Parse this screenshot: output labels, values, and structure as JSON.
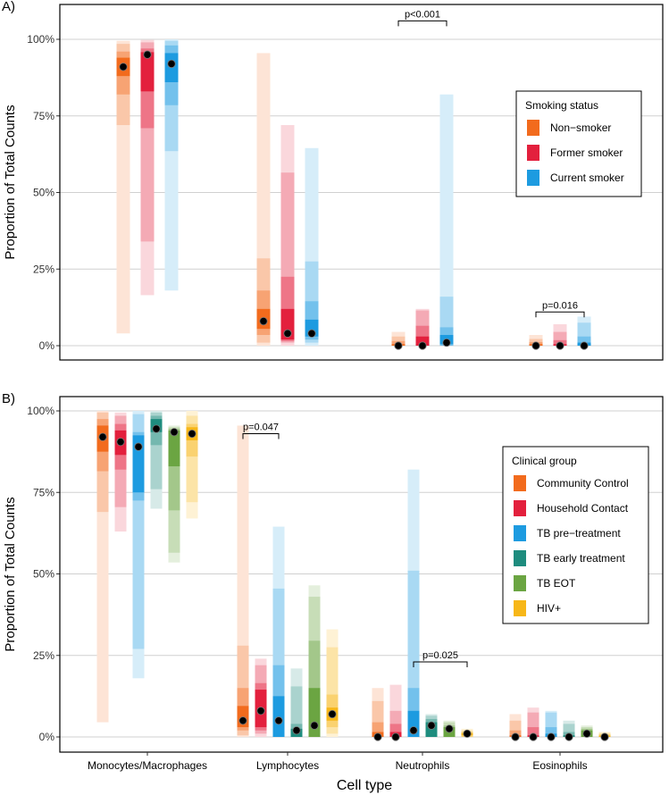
{
  "figure": {
    "xlabel": "Cell type"
  },
  "chart_data": [
    {
      "type": "bar",
      "subtype": "stacked-interval-ranges",
      "panel_label": "A)",
      "ylabel": "Proportion of Total Counts",
      "xlabel": "",
      "ylim": [
        0,
        1
      ],
      "yticks": [
        "0%",
        "25%",
        "50%",
        "75%",
        "100%"
      ],
      "grid": true,
      "legend": {
        "title": "Smoking status",
        "position": "right"
      },
      "categories": [
        "Monocytes/Macrophages",
        "Lymphocytes",
        "Neutrophils",
        "Eosinophils"
      ],
      "series": [
        {
          "name": "Non−smoker",
          "color": "#F26B1D",
          "values": [
            {
              "median": 0.91,
              "bands": [
                [
                  0.04,
                  0.995
                ],
                [
                  0.72,
                  0.985
                ],
                [
                  0.82,
                  0.96
                ],
                [
                  0.88,
                  0.94
                ]
              ]
            },
            {
              "median": 0.08,
              "bands": [
                [
                  0.0,
                  0.955
                ],
                [
                  0.01,
                  0.285
                ],
                [
                  0.035,
                  0.18
                ],
                [
                  0.055,
                  0.12
                ]
              ]
            },
            {
              "median": 0.0,
              "bands": [
                [
                  0.0,
                  0.045
                ],
                [
                  0.0,
                  0.03
                ],
                [
                  0.0,
                  0.015
                ],
                [
                  0.0,
                  0.005
                ]
              ]
            },
            {
              "median": 0.0,
              "bands": [
                [
                  0.0,
                  0.035
                ],
                [
                  0.0,
                  0.022
                ],
                [
                  0.0,
                  0.012
                ],
                [
                  0.0,
                  0.005
                ]
              ]
            }
          ]
        },
        {
          "name": "Former smoker",
          "color": "#E3203D",
          "values": [
            {
              "median": 0.95,
              "bands": [
                [
                  0.165,
                  0.998
                ],
                [
                  0.34,
                  0.99
                ],
                [
                  0.71,
                  0.97
                ],
                [
                  0.83,
                  0.958
                ]
              ]
            },
            {
              "median": 0.04,
              "bands": [
                [
                  0.0,
                  0.72
                ],
                [
                  0.01,
                  0.565
                ],
                [
                  0.015,
                  0.225
                ],
                [
                  0.02,
                  0.12
                ]
              ]
            },
            {
              "median": 0.0,
              "bands": [
                [
                  0.0,
                  0.12
                ],
                [
                  0.0,
                  0.115
                ],
                [
                  0.0,
                  0.065
                ],
                [
                  0.0,
                  0.03
                ]
              ]
            },
            {
              "median": 0.0,
              "bands": [
                [
                  0.0,
                  0.07
                ],
                [
                  0.0,
                  0.045
                ],
                [
                  0.0,
                  0.018
                ],
                [
                  0.0,
                  0.005
                ]
              ]
            }
          ]
        },
        {
          "name": "Current smoker",
          "color": "#1D9BE0",
          "values": [
            {
              "median": 0.92,
              "bands": [
                [
                  0.18,
                  1.0
                ],
                [
                  0.635,
                  0.995
                ],
                [
                  0.785,
                  0.98
                ],
                [
                  0.86,
                  0.955
                ]
              ]
            },
            {
              "median": 0.04,
              "bands": [
                [
                  0.0,
                  0.645
                ],
                [
                  0.01,
                  0.275
                ],
                [
                  0.02,
                  0.145
                ],
                [
                  0.03,
                  0.085
                ]
              ]
            },
            {
              "median": 0.01,
              "bands": [
                [
                  0.0,
                  0.82
                ],
                [
                  0.0,
                  0.16
                ],
                [
                  0.0,
                  0.06
                ],
                [
                  0.005,
                  0.035
                ]
              ]
            },
            {
              "median": 0.0,
              "bands": [
                [
                  0.0,
                  0.095
                ],
                [
                  0.0,
                  0.075
                ],
                [
                  0.0,
                  0.03
                ],
                [
                  0.0,
                  0.01
                ]
              ]
            }
          ]
        }
      ],
      "annotations": [
        {
          "text": "p<0.001",
          "category": 2,
          "from_series": 0,
          "to_series": 2,
          "y": 1.06
        },
        {
          "text": "p=0.016",
          "category": 3,
          "from_series": 0,
          "to_series": 2,
          "y": 0.11
        }
      ]
    },
    {
      "type": "bar",
      "subtype": "stacked-interval-ranges",
      "panel_label": "B)",
      "ylabel": "Proportion of Total Counts",
      "xlabel": "Cell type",
      "ylim": [
        0,
        1
      ],
      "yticks": [
        "0%",
        "25%",
        "50%",
        "75%",
        "100%"
      ],
      "grid": true,
      "legend": {
        "title": "Clinical group",
        "position": "right"
      },
      "categories": [
        "Monocytes/Macrophages",
        "Lymphocytes",
        "Neutrophils",
        "Eosinophils"
      ],
      "series": [
        {
          "name": "Community Control",
          "color": "#F26B1D",
          "values": [
            {
              "median": 0.92,
              "bands": [
                [
                  0.045,
                  1.0
                ],
                [
                  0.69,
                  0.995
                ],
                [
                  0.815,
                  0.975
                ],
                [
                  0.875,
                  0.955
                ]
              ]
            },
            {
              "median": 0.05,
              "bands": [
                [
                  0.0,
                  0.955
                ],
                [
                  0.005,
                  0.28
                ],
                [
                  0.02,
                  0.15
                ],
                [
                  0.03,
                  0.095
                ]
              ]
            },
            {
              "median": 0.0,
              "bands": [
                [
                  0.0,
                  0.15
                ],
                [
                  0.0,
                  0.11
                ],
                [
                  0.0,
                  0.045
                ],
                [
                  0.0,
                  0.015
                ]
              ]
            },
            {
              "median": 0.0,
              "bands": [
                [
                  0.0,
                  0.07
                ],
                [
                  0.0,
                  0.05
                ],
                [
                  0.0,
                  0.02
                ],
                [
                  0.0,
                  0.005
                ]
              ]
            }
          ]
        },
        {
          "name": "Household Contact",
          "color": "#E3203D",
          "values": [
            {
              "median": 0.905,
              "bands": [
                [
                  0.63,
                  0.995
                ],
                [
                  0.705,
                  0.985
                ],
                [
                  0.82,
                  0.96
                ],
                [
                  0.865,
                  0.94
                ]
              ]
            },
            {
              "median": 0.08,
              "bands": [
                [
                  0.0,
                  0.24
                ],
                [
                  0.01,
                  0.22
                ],
                [
                  0.02,
                  0.165
                ],
                [
                  0.03,
                  0.145
                ]
              ]
            },
            {
              "median": 0.0,
              "bands": [
                [
                  0.0,
                  0.16
                ],
                [
                  0.0,
                  0.08
                ],
                [
                  0.0,
                  0.04
                ],
                [
                  0.0,
                  0.015
                ]
              ]
            },
            {
              "median": 0.0,
              "bands": [
                [
                  0.0,
                  0.09
                ],
                [
                  0.0,
                  0.075
                ],
                [
                  0.0,
                  0.03
                ],
                [
                  0.0,
                  0.005
                ]
              ]
            }
          ]
        },
        {
          "name": "TB pre−treatment",
          "color": "#1D9BE0",
          "values": [
            {
              "median": 0.89,
              "bands": [
                [
                  0.18,
                  1.0
                ],
                [
                  0.27,
                  0.99
                ],
                [
                  0.725,
                  0.935
                ],
                [
                  0.75,
                  0.925
                ]
              ]
            },
            {
              "median": 0.05,
              "bands": [
                [
                  0.0,
                  0.645
                ],
                [
                  0.0,
                  0.455
                ],
                [
                  0.0,
                  0.22
                ],
                [
                  0.0,
                  0.125
                ]
              ]
            },
            {
              "median": 0.02,
              "bands": [
                [
                  0.0,
                  0.82
                ],
                [
                  0.0,
                  0.51
                ],
                [
                  0.0,
                  0.15
                ],
                [
                  0.0,
                  0.08
                ]
              ]
            },
            {
              "median": 0.0,
              "bands": [
                [
                  0.0,
                  0.08
                ],
                [
                  0.0,
                  0.075
                ],
                [
                  0.0,
                  0.03
                ],
                [
                  0.0,
                  0.01
                ]
              ]
            }
          ]
        },
        {
          "name": "TB early treatment",
          "color": "#1E8C7E",
          "values": [
            {
              "median": 0.945,
              "bands": [
                [
                  0.7,
                  1.0
                ],
                [
                  0.76,
                  0.995
                ],
                [
                  0.895,
                  0.985
                ],
                [
                  0.935,
                  0.975
                ]
              ]
            },
            {
              "median": 0.02,
              "bands": [
                [
                  0.0,
                  0.21
                ],
                [
                  0.0,
                  0.155
                ],
                [
                  0.0,
                  0.04
                ],
                [
                  0.0,
                  0.025
                ]
              ]
            },
            {
              "median": 0.035,
              "bands": [
                [
                  0.0,
                  0.07
                ],
                [
                  0.0,
                  0.065
                ],
                [
                  0.0,
                  0.055
                ],
                [
                  0.0,
                  0.045
                ]
              ]
            },
            {
              "median": 0.0,
              "bands": [
                [
                  0.0,
                  0.05
                ],
                [
                  0.0,
                  0.04
                ],
                [
                  0.0,
                  0.015
                ],
                [
                  0.0,
                  0.005
                ]
              ]
            }
          ]
        },
        {
          "name": "TB EOT",
          "color": "#6BA542",
          "values": [
            {
              "median": 0.935,
              "bands": [
                [
                  0.535,
                  0.955
                ],
                [
                  0.565,
                  0.95
                ],
                [
                  0.695,
                  0.945
                ],
                [
                  0.83,
                  0.94
                ]
              ]
            },
            {
              "median": 0.035,
              "bands": [
                [
                  0.0,
                  0.465
                ],
                [
                  0.0,
                  0.43
                ],
                [
                  0.0,
                  0.295
                ],
                [
                  0.0,
                  0.15
                ]
              ]
            },
            {
              "median": 0.025,
              "bands": [
                [
                  0.0,
                  0.05
                ],
                [
                  0.0,
                  0.045
                ],
                [
                  0.0,
                  0.035
                ],
                [
                  0.0,
                  0.03
                ]
              ]
            },
            {
              "median": 0.01,
              "bands": [
                [
                  0.0,
                  0.035
                ],
                [
                  0.0,
                  0.03
                ],
                [
                  0.0,
                  0.025
                ],
                [
                  0.0,
                  0.02
                ]
              ]
            }
          ]
        },
        {
          "name": "HIV+",
          "color": "#F7B718",
          "values": [
            {
              "median": 0.93,
              "bands": [
                [
                  0.67,
                  1.0
                ],
                [
                  0.72,
                  0.985
                ],
                [
                  0.86,
                  0.96
                ],
                [
                  0.91,
                  0.95
                ]
              ]
            },
            {
              "median": 0.07,
              "bands": [
                [
                  0.0,
                  0.33
                ],
                [
                  0.01,
                  0.275
                ],
                [
                  0.03,
                  0.13
                ],
                [
                  0.05,
                  0.09
                ]
              ]
            },
            {
              "median": 0.01,
              "bands": [
                [
                  0.0,
                  0.025
                ],
                [
                  0.0,
                  0.02
                ],
                [
                  0.0,
                  0.015
                ],
                [
                  0.005,
                  0.012
                ]
              ]
            },
            {
              "median": 0.0,
              "bands": [
                [
                  0.0,
                  0.015
                ],
                [
                  0.0,
                  0.012
                ],
                [
                  0.0,
                  0.008
                ],
                [
                  0.0,
                  0.004
                ]
              ]
            }
          ]
        }
      ],
      "annotations": [
        {
          "text": "p=0.047",
          "category": 1,
          "from_series": 0,
          "to_series": 2,
          "y": 0.93
        },
        {
          "text": "p=0.025",
          "category": 2,
          "from_series": 2,
          "to_series": 5,
          "y": 0.23
        }
      ]
    }
  ]
}
